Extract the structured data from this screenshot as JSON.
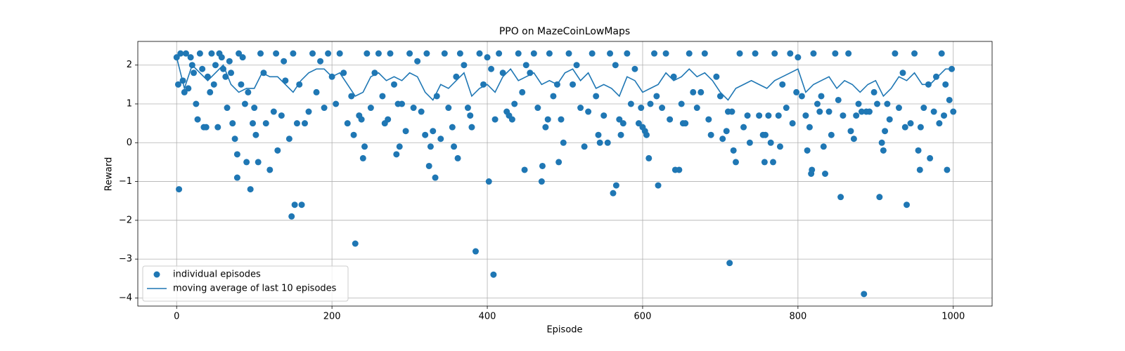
{
  "chart_data": {
    "type": "scatter",
    "title": "PPO on MazeCoinLowMaps",
    "x_label": "Episode",
    "y_label": "Reward",
    "xlim": [
      -50,
      1050
    ],
    "ylim": [
      -4.21,
      2.61
    ],
    "xticks": [
      0,
      200,
      400,
      600,
      800,
      1000
    ],
    "yticks": [
      {
        "value": -4,
        "label": "−4"
      },
      {
        "value": -3,
        "label": "−3"
      },
      {
        "value": -2,
        "label": "−2"
      },
      {
        "value": -1,
        "label": "−1"
      },
      0,
      1,
      2
    ],
    "grid": true,
    "legend": "lower left",
    "series": [
      {
        "name": "individual episodes",
        "type": "scatter",
        "color": "#1f77b4",
        "x": [
          0,
          2,
          5,
          8,
          10,
          12,
          15,
          18,
          20,
          22,
          25,
          27,
          30,
          33,
          35,
          38,
          40,
          43,
          45,
          48,
          50,
          53,
          55,
          58,
          60,
          63,
          65,
          68,
          70,
          72,
          80,
          83,
          85,
          88,
          92,
          98,
          100,
          102,
          108,
          112,
          115,
          125,
          128,
          135,
          138,
          140,
          145,
          150,
          155,
          158,
          165,
          170,
          175,
          180,
          185,
          190,
          195,
          200,
          205,
          210,
          215,
          220,
          225,
          228,
          235,
          238,
          245,
          250,
          255,
          260,
          265,
          268,
          272,
          275,
          280,
          285,
          290,
          295,
          300,
          305,
          310,
          315,
          320,
          322,
          330,
          335,
          340,
          345,
          350,
          355,
          360,
          365,
          370,
          375,
          378,
          380,
          390,
          395,
          400,
          405,
          410,
          415,
          420,
          425,
          428,
          432,
          435,
          440,
          445,
          450,
          455,
          460,
          465,
          475,
          478,
          480,
          485,
          490,
          495,
          498,
          505,
          510,
          515,
          520,
          530,
          535,
          540,
          545,
          550,
          555,
          558,
          565,
          570,
          572,
          575,
          580,
          585,
          590,
          595,
          598,
          600,
          603,
          605,
          610,
          615,
          618,
          625,
          630,
          635,
          640,
          650,
          652,
          655,
          660,
          665,
          670,
          675,
          680,
          685,
          688,
          695,
          700,
          703,
          708,
          710,
          715,
          725,
          730,
          735,
          738,
          745,
          750,
          755,
          758,
          762,
          765,
          770,
          775,
          780,
          785,
          790,
          793,
          798,
          800,
          805,
          810,
          815,
          820,
          825,
          828,
          830,
          840,
          843,
          848,
          852,
          858,
          865,
          868,
          872,
          875,
          878,
          882,
          888,
          892,
          898,
          902,
          908,
          912,
          915,
          918,
          925,
          930,
          935,
          938,
          945,
          950,
          958,
          962,
          968,
          975,
          978,
          982,
          985,
          988,
          990,
          995,
          998,
          1000,
          3,
          75,
          78,
          78,
          90,
          95,
          105,
          120,
          130,
          148,
          152,
          161,
          230,
          240,
          242,
          283,
          287,
          325,
          327,
          333,
          357,
          362,
          385,
          402,
          408,
          448,
          470,
          471,
          492,
          525,
          543,
          562,
          566,
          608,
          620,
          642,
          647,
          712,
          717,
          720,
          757,
          768,
          777,
          812,
          817,
          818,
          833,
          835,
          855,
          885,
          905,
          910,
          940,
          955,
          957,
          970,
          992
        ],
        "values": [
          2.2,
          1.5,
          2.3,
          1.6,
          1.3,
          2.3,
          1.4,
          2.2,
          2.0,
          1.8,
          1.0,
          0.6,
          2.3,
          1.9,
          0.4,
          0.4,
          1.7,
          1.3,
          2.3,
          1.5,
          2.0,
          0.4,
          2.3,
          2.2,
          1.9,
          1.7,
          0.9,
          2.1,
          1.8,
          0.5,
          2.3,
          1.5,
          2.2,
          1.0,
          1.3,
          0.5,
          0.9,
          0.2,
          2.3,
          1.8,
          0.5,
          0.8,
          2.3,
          0.7,
          2.1,
          1.6,
          0.1,
          2.3,
          0.5,
          1.5,
          0.5,
          0.8,
          2.3,
          1.3,
          2.1,
          0.9,
          2.3,
          1.7,
          1.0,
          2.3,
          1.8,
          0.5,
          1.2,
          0.2,
          0.7,
          0.6,
          2.3,
          0.9,
          1.8,
          2.3,
          1.2,
          0.5,
          0.6,
          2.3,
          1.5,
          1.0,
          1.0,
          0.3,
          2.3,
          0.9,
          2.1,
          0.8,
          0.2,
          2.3,
          0.3,
          1.2,
          0.1,
          2.3,
          0.9,
          0.4,
          1.7,
          2.3,
          2.0,
          0.9,
          0.7,
          0.4,
          2.3,
          1.5,
          2.2,
          1.9,
          0.6,
          2.3,
          1.8,
          0.8,
          0.7,
          0.6,
          1.0,
          2.3,
          1.3,
          2.0,
          1.8,
          2.3,
          0.9,
          0.4,
          0.6,
          2.3,
          1.2,
          1.5,
          0.6,
          0.0,
          2.3,
          1.5,
          2.0,
          0.9,
          0.8,
          2.3,
          1.2,
          0.0,
          0.7,
          0.0,
          2.3,
          2.0,
          0.6,
          0.2,
          0.5,
          2.3,
          1.0,
          1.9,
          0.5,
          0.9,
          0.4,
          0.3,
          0.2,
          1.0,
          2.3,
          1.2,
          0.9,
          2.3,
          0.6,
          1.7,
          1.0,
          0.5,
          0.5,
          2.3,
          1.3,
          0.9,
          1.3,
          2.3,
          0.6,
          0.2,
          1.7,
          1.2,
          0.1,
          0.3,
          0.8,
          0.8,
          2.3,
          0.4,
          0.7,
          0.0,
          2.3,
          0.7,
          0.2,
          0.2,
          0.7,
          0.0,
          2.3,
          0.7,
          1.5,
          0.9,
          2.3,
          0.5,
          1.3,
          2.2,
          1.2,
          0.7,
          0.4,
          2.3,
          1.0,
          0.8,
          1.2,
          0.8,
          0.2,
          2.3,
          1.1,
          0.7,
          2.3,
          0.3,
          0.1,
          0.7,
          1.0,
          0.8,
          0.8,
          0.8,
          1.3,
          1.0,
          0.0,
          0.3,
          1.0,
          0.6,
          2.3,
          0.9,
          1.8,
          0.4,
          0.5,
          2.3,
          0.4,
          0.9,
          1.5,
          0.8,
          1.7,
          0.5,
          2.3,
          0.7,
          1.5,
          1.1,
          1.9,
          0.8,
          -1.2,
          0.1,
          -0.3,
          -0.9,
          -0.5,
          -1.2,
          -0.5,
          -0.7,
          -0.2,
          -1.9,
          -1.6,
          -1.6,
          -2.6,
          -0.4,
          -0.1,
          -0.3,
          -0.1,
          -0.6,
          -0.1,
          -0.9,
          -0.1,
          -0.4,
          -2.8,
          -1.0,
          -3.4,
          -0.7,
          -1.0,
          -0.6,
          -0.5,
          -0.1,
          0.2,
          -1.3,
          -1.1,
          -0.4,
          -1.1,
          -0.7,
          -0.7,
          -3.1,
          -0.2,
          -0.5,
          -0.5,
          -0.5,
          -0.1,
          -0.2,
          -0.8,
          -0.7,
          -0.1,
          -0.8,
          -1.4,
          -3.9,
          -1.4,
          -0.2,
          -1.6,
          -0.2,
          -0.7,
          -0.4,
          -0.7
        ]
      },
      {
        "name": "moving average of last 10 episodes",
        "type": "line",
        "color": "#1f77b4",
        "x": [
          0,
          10,
          20,
          30,
          40,
          50,
          60,
          70,
          80,
          90,
          100,
          110,
          120,
          130,
          140,
          150,
          160,
          170,
          180,
          190,
          200,
          210,
          220,
          230,
          240,
          250,
          260,
          270,
          280,
          290,
          300,
          310,
          320,
          330,
          340,
          350,
          360,
          370,
          380,
          390,
          400,
          410,
          420,
          430,
          440,
          450,
          460,
          470,
          480,
          490,
          500,
          510,
          520,
          530,
          540,
          550,
          560,
          570,
          580,
          590,
          600,
          610,
          620,
          630,
          640,
          650,
          660,
          670,
          680,
          690,
          700,
          710,
          720,
          730,
          740,
          750,
          760,
          770,
          780,
          790,
          800,
          810,
          820,
          830,
          840,
          850,
          860,
          870,
          880,
          890,
          900,
          910,
          920,
          930,
          940,
          950,
          960,
          970,
          980,
          990,
          1000
        ],
        "values": [
          2.2,
          1.4,
          2.0,
          1.8,
          1.6,
          1.8,
          2.0,
          1.5,
          1.3,
          1.4,
          1.4,
          1.8,
          1.7,
          1.7,
          1.5,
          1.3,
          1.6,
          1.8,
          1.9,
          1.9,
          1.7,
          1.8,
          1.5,
          1.2,
          1.3,
          1.7,
          1.8,
          1.6,
          1.7,
          1.6,
          1.8,
          1.7,
          1.3,
          1.1,
          1.5,
          1.4,
          1.6,
          1.8,
          1.2,
          1.4,
          1.5,
          1.3,
          1.7,
          1.9,
          1.6,
          1.7,
          1.8,
          1.5,
          1.6,
          1.5,
          1.8,
          1.9,
          1.6,
          1.8,
          1.4,
          1.5,
          1.4,
          1.2,
          1.7,
          1.6,
          1.3,
          1.4,
          1.5,
          1.8,
          1.6,
          1.7,
          1.9,
          1.7,
          1.8,
          1.6,
          1.3,
          1.1,
          1.4,
          1.5,
          1.6,
          1.5,
          1.4,
          1.6,
          1.7,
          1.8,
          1.9,
          1.3,
          1.5,
          1.6,
          1.7,
          1.4,
          1.6,
          1.5,
          1.3,
          1.5,
          1.6,
          1.2,
          1.4,
          1.7,
          1.6,
          1.8,
          1.5,
          1.5,
          1.7,
          1.9,
          1.9
        ]
      }
    ]
  }
}
